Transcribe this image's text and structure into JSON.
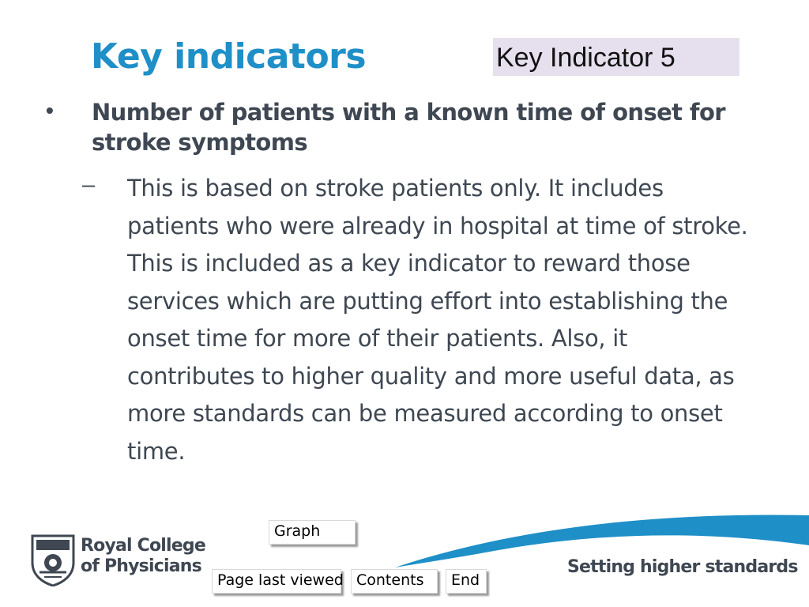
{
  "header": {
    "title": "Key indicators",
    "indicator_badge": "Key Indicator 5"
  },
  "content": {
    "bullet_symbol": "•",
    "main_point": "Number of patients with a known time of onset for stroke symptoms",
    "dash_symbol": "–",
    "sub_point": "This is based on stroke patients only. It includes patients who were already in hospital at time of stroke. This is included as a key indicator to reward those services which are putting effort into establishing the onset time for more of their patients.  Also, it contributes to higher quality and more useful data, as more standards can be measured according to onset time."
  },
  "nav": {
    "graph_label": "Graph",
    "last_viewed_label": "Page last viewed",
    "contents_label": "Contents",
    "end_label": "End"
  },
  "footer": {
    "logo_line1": "Royal College",
    "logo_line2": "of Physicians",
    "logo_icon": "crest-icon",
    "tagline": "Setting higher standards"
  },
  "colors": {
    "title": "#1f8fc8",
    "body_text": "#3e4752",
    "badge_bg": "#e6e0ee",
    "swoosh": "#1f8fc8"
  }
}
